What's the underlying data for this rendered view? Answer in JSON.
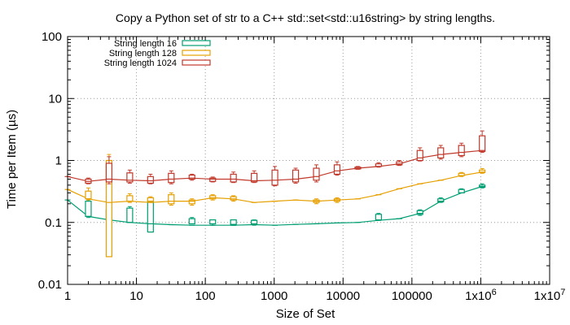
{
  "chart_data": {
    "type": "line",
    "title": "Copy a Python set of str to a C++ std::set<std::u16string> by string lengths.",
    "xlabel": "Size of Set",
    "ylabel": "Time per Item (µs)",
    "xscale": "log",
    "yscale": "log",
    "xlim": [
      1,
      10000000
    ],
    "ylim": [
      0.01,
      100
    ],
    "grid": true,
    "legend_position": "top-left",
    "x_ticks": [
      {
        "value": 1,
        "label": "1"
      },
      {
        "value": 10,
        "label": "10"
      },
      {
        "value": 100,
        "label": "100"
      },
      {
        "value": 1000,
        "label": "1000"
      },
      {
        "value": 10000,
        "label": "10000"
      },
      {
        "value": 100000,
        "label": "100000"
      },
      {
        "value": 1000000,
        "label": "1x10^6"
      },
      {
        "value": 10000000,
        "label": "1x10^7"
      }
    ],
    "y_ticks": [
      {
        "value": 0.01,
        "label": "0.01"
      },
      {
        "value": 0.1,
        "label": "0.1"
      },
      {
        "value": 1,
        "label": "1"
      },
      {
        "value": 10,
        "label": "10"
      },
      {
        "value": 100,
        "label": "100"
      }
    ],
    "series": [
      {
        "name": "String length 16",
        "color": "#009e73",
        "x": [
          1,
          2,
          4,
          8,
          16,
          32,
          64,
          128,
          256,
          512,
          1024,
          2048,
          4096,
          8192,
          16384,
          32768,
          65536,
          131072,
          262144,
          524288,
          1048576
        ],
        "y": [
          0.23,
          0.125,
          0.11,
          0.1,
          0.095,
          0.092,
          0.09,
          0.09,
          0.09,
          0.092,
          0.09,
          0.093,
          0.095,
          0.098,
          0.1,
          0.108,
          0.115,
          0.14,
          0.22,
          0.3,
          0.38
        ],
        "box": [
          null,
          [
            0.125,
            0.22
          ],
          [
            0.11,
            0.16
          ],
          [
            0.1,
            0.17
          ],
          [
            0.07,
            0.22
          ],
          null,
          [
            0.095,
            0.115
          ],
          [
            0.095,
            0.11
          ],
          [
            0.093,
            0.11
          ],
          [
            0.095,
            0.108
          ],
          null,
          null,
          null,
          null,
          null,
          [
            0.11,
            0.135
          ],
          null,
          [
            0.135,
            0.155
          ],
          [
            0.215,
            0.24
          ],
          [
            0.3,
            0.34
          ],
          [
            0.37,
            0.4
          ]
        ],
        "whisker": [
          null,
          [
            0.12,
            0.23
          ],
          [
            0.1,
            0.17
          ],
          [
            0.1,
            0.18
          ],
          [
            0.07,
            0.23
          ],
          null,
          [
            0.095,
            0.12
          ],
          [
            0.09,
            0.11
          ],
          [
            0.09,
            0.11
          ],
          [
            0.09,
            0.11
          ],
          null,
          null,
          null,
          null,
          null,
          [
            0.11,
            0.14
          ],
          null,
          [
            0.13,
            0.16
          ],
          [
            0.21,
            0.25
          ],
          [
            0.3,
            0.35
          ],
          [
            0.36,
            0.42
          ]
        ]
      },
      {
        "name": "String length 128",
        "color": "#e69f00",
        "x": [
          1,
          2,
          4,
          8,
          16,
          32,
          64,
          128,
          256,
          512,
          1024,
          2048,
          4096,
          8192,
          16384,
          32768,
          65536,
          131072,
          262144,
          524288,
          1048576
        ],
        "y": [
          0.34,
          0.24,
          0.21,
          0.22,
          0.21,
          0.22,
          0.22,
          0.25,
          0.24,
          0.21,
          0.22,
          0.23,
          0.22,
          0.23,
          0.24,
          0.28,
          0.35,
          0.42,
          0.48,
          0.57,
          0.65
        ],
        "box": [
          null,
          [
            0.24,
            0.32
          ],
          [
            0.028,
            1.0
          ],
          [
            0.22,
            0.27
          ],
          [
            0.22,
            0.25
          ],
          [
            0.2,
            0.28
          ],
          [
            0.2,
            0.23
          ],
          [
            0.24,
            0.27
          ],
          [
            0.23,
            0.26
          ],
          null,
          null,
          null,
          [
            0.21,
            0.23
          ],
          [
            0.22,
            0.24
          ],
          null,
          null,
          null,
          null,
          null,
          [
            0.57,
            0.62
          ],
          [
            0.64,
            0.7
          ]
        ],
        "whisker": [
          null,
          [
            0.23,
            0.36
          ],
          [
            0.028,
            1.25
          ],
          [
            0.21,
            0.29
          ],
          [
            0.21,
            0.26
          ],
          [
            0.19,
            0.3
          ],
          [
            0.19,
            0.24
          ],
          [
            0.23,
            0.28
          ],
          [
            0.22,
            0.27
          ],
          null,
          null,
          null,
          [
            0.2,
            0.24
          ],
          [
            0.21,
            0.25
          ],
          null,
          null,
          null,
          null,
          null,
          [
            0.55,
            0.64
          ],
          [
            0.62,
            0.74
          ]
        ]
      },
      {
        "name": "String length 1024",
        "color": "#c0392b",
        "x": [
          1,
          2,
          4,
          8,
          16,
          32,
          64,
          128,
          256,
          512,
          1024,
          2048,
          4096,
          8192,
          16384,
          32768,
          65536,
          131072,
          262144,
          524288,
          1048576
        ],
        "y": [
          0.55,
          0.46,
          0.5,
          0.48,
          0.47,
          0.5,
          0.52,
          0.5,
          0.5,
          0.47,
          0.48,
          0.5,
          0.55,
          0.68,
          0.75,
          0.8,
          0.88,
          1.1,
          1.25,
          1.35,
          1.45
        ],
        "box": [
          null,
          [
            0.43,
            0.5
          ],
          [
            0.45,
            0.9
          ],
          [
            0.45,
            0.63
          ],
          [
            0.43,
            0.55
          ],
          [
            0.44,
            0.62
          ],
          [
            0.5,
            0.58
          ],
          [
            0.46,
            0.52
          ],
          [
            0.45,
            0.6
          ],
          [
            0.45,
            0.62
          ],
          [
            0.4,
            0.7
          ],
          [
            0.45,
            0.7
          ],
          [
            0.48,
            0.75
          ],
          [
            0.6,
            0.85
          ],
          [
            0.73,
            0.78
          ],
          [
            0.8,
            0.88
          ],
          [
            0.85,
            0.95
          ],
          [
            1.0,
            1.45
          ],
          [
            1.1,
            1.6
          ],
          [
            1.2,
            1.75
          ],
          [
            1.4,
            2.5
          ]
        ],
        "whisker": [
          null,
          [
            0.42,
            0.52
          ],
          [
            0.42,
            1.15
          ],
          [
            0.43,
            0.7
          ],
          [
            0.42,
            0.6
          ],
          [
            0.42,
            0.68
          ],
          [
            0.48,
            0.6
          ],
          [
            0.45,
            0.54
          ],
          [
            0.44,
            0.65
          ],
          [
            0.44,
            0.68
          ],
          [
            0.39,
            0.8
          ],
          [
            0.43,
            0.75
          ],
          [
            0.45,
            0.85
          ],
          [
            0.58,
            0.95
          ],
          [
            0.72,
            0.8
          ],
          [
            0.78,
            0.92
          ],
          [
            0.83,
            1.0
          ],
          [
            0.98,
            1.6
          ],
          [
            1.05,
            1.75
          ],
          [
            1.15,
            1.9
          ],
          [
            1.35,
            3.0
          ]
        ]
      }
    ]
  }
}
